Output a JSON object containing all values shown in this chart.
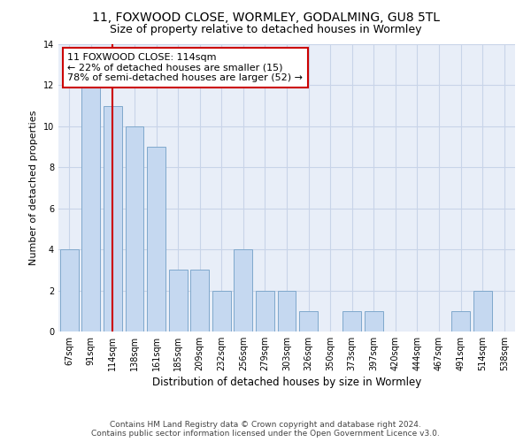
{
  "title": "11, FOXWOOD CLOSE, WORMLEY, GODALMING, GU8 5TL",
  "subtitle": "Size of property relative to detached houses in Wormley",
  "xlabel": "Distribution of detached houses by size in Wormley",
  "ylabel": "Number of detached properties",
  "categories": [
    "67sqm",
    "91sqm",
    "114sqm",
    "138sqm",
    "161sqm",
    "185sqm",
    "209sqm",
    "232sqm",
    "256sqm",
    "279sqm",
    "303sqm",
    "326sqm",
    "350sqm",
    "373sqm",
    "397sqm",
    "420sqm",
    "444sqm",
    "467sqm",
    "491sqm",
    "514sqm",
    "538sqm"
  ],
  "values": [
    4,
    12,
    11,
    10,
    9,
    3,
    3,
    2,
    4,
    2,
    2,
    1,
    0,
    1,
    1,
    0,
    0,
    0,
    1,
    2,
    0
  ],
  "bar_color": "#c5d8f0",
  "bar_edge_color": "#7fa8cc",
  "vline_x_index": 2,
  "vline_color": "#cc0000",
  "annotation_text": "11 FOXWOOD CLOSE: 114sqm\n← 22% of detached houses are smaller (15)\n78% of semi-detached houses are larger (52) →",
  "annotation_box_facecolor": "#ffffff",
  "annotation_box_edgecolor": "#cc0000",
  "ylim": [
    0,
    14
  ],
  "yticks": [
    0,
    2,
    4,
    6,
    8,
    10,
    12,
    14
  ],
  "grid_color": "#c8d4e8",
  "background_color": "#e8eef8",
  "footer_text": "Contains HM Land Registry data © Crown copyright and database right 2024.\nContains public sector information licensed under the Open Government Licence v3.0.",
  "title_fontsize": 10,
  "subtitle_fontsize": 9,
  "xlabel_fontsize": 8.5,
  "ylabel_fontsize": 8,
  "tick_fontsize": 7,
  "annotation_fontsize": 8,
  "footer_fontsize": 6.5
}
